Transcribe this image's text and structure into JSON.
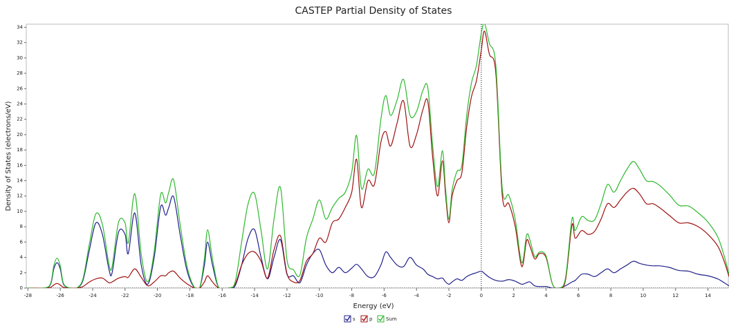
{
  "chart_data": {
    "type": "line",
    "title": "CASTEP Partial  Density of States",
    "xlabel": "Energy (eV)",
    "ylabel": "Density of States (electrons/eV)",
    "x": [
      -28,
      -27,
      -26.6,
      -26.4,
      -26.2,
      -26.0,
      -25.8,
      -25.4,
      -25,
      -24.6,
      -24.2,
      -23.8,
      -23.4,
      -23.0,
      -22.8,
      -22.4,
      -22.0,
      -21.8,
      -21.4,
      -21.0,
      -20.6,
      -20.2,
      -19.8,
      -19.5,
      -19.3,
      -19.0,
      -18.6,
      -18.2,
      -17.8,
      -17.4,
      -17.1,
      -16.9,
      -16.6,
      -16.2,
      -15.6,
      -15.2,
      -14.8,
      -14.4,
      -14.0,
      -13.6,
      -13.2,
      -12.8,
      -12.4,
      -12.0,
      -11.6,
      -11.2,
      -10.8,
      -10.4,
      -10.0,
      -9.6,
      -9.2,
      -8.8,
      -8.4,
      -8.0,
      -7.7,
      -7.4,
      -7.0,
      -6.6,
      -6.2,
      -5.9,
      -5.6,
      -5.2,
      -4.8,
      -4.4,
      -4.0,
      -3.6,
      -3.3,
      -3.0,
      -2.7,
      -2.4,
      -2.2,
      -2.0,
      -1.8,
      -1.5,
      -1.2,
      -0.9,
      -0.6,
      -0.3,
      0,
      0.2,
      0.5,
      0.9,
      1.3,
      1.7,
      2.1,
      2.5,
      2.8,
      3.0,
      3.3,
      3.6,
      4.0,
      4.4,
      4.8,
      5.2,
      5.6,
      5.8,
      6.2,
      6.6,
      7.0,
      7.4,
      7.8,
      8.2,
      8.6,
      9.0,
      9.4,
      9.8,
      10.2,
      10.6,
      11.0,
      11.6,
      12.2,
      12.8,
      13.4,
      14.0,
      14.6,
      15.0,
      15.3
    ],
    "series": [
      {
        "name": "s",
        "color": "#1f1f8a",
        "values": [
          0,
          0,
          0.5,
          2.5,
          3.3,
          2.5,
          0.5,
          0,
          0,
          1,
          5,
          8.5,
          7,
          2.5,
          2,
          7.3,
          7,
          4.5,
          9.8,
          3,
          0.5,
          4,
          10.6,
          9.5,
          10.5,
          11.9,
          7,
          2.5,
          0.3,
          0,
          3,
          6,
          3,
          0,
          0,
          0.3,
          3,
          6.5,
          7.6,
          4,
          1.2,
          4,
          6.3,
          1.8,
          1.6,
          0.7,
          3,
          4.5,
          5,
          3,
          2,
          2.7,
          2,
          2.6,
          3.1,
          2.5,
          1.5,
          1.5,
          3,
          4.7,
          4,
          3,
          2.8,
          4,
          3,
          2.5,
          1.8,
          1.5,
          1.2,
          1.3,
          0.8,
          0.5,
          0.8,
          1.2,
          1,
          1.5,
          1.8,
          2,
          2.2,
          1.9,
          1.4,
          1.0,
          0.9,
          1.1,
          0.9,
          0.5,
          0.7,
          0.8,
          0.3,
          0.2,
          0.2,
          0,
          0,
          0.3,
          0.8,
          1,
          1.8,
          1.8,
          1.5,
          2,
          2.5,
          2,
          2.5,
          3,
          3.5,
          3.2,
          3,
          2.9,
          2.9,
          2.7,
          2.3,
          2.2,
          1.8,
          1.6,
          1.2,
          0.7,
          0.3
        ]
      },
      {
        "name": "p",
        "color": "#a01010",
        "values": [
          0,
          0,
          0.1,
          0.4,
          0.6,
          0.4,
          0.1,
          0,
          0,
          0.2,
          0.8,
          1.2,
          1.3,
          0.7,
          0.8,
          1.3,
          1.5,
          1.4,
          2.5,
          1.4,
          0.3,
          0.8,
          1.6,
          1.6,
          2,
          2.2,
          1.3,
          0.6,
          0.1,
          0,
          0.8,
          1.6,
          0.8,
          0,
          0,
          0.5,
          3,
          4.5,
          4.7,
          3.5,
          1.3,
          5,
          6.8,
          1.9,
          0.8,
          1,
          3.5,
          4.5,
          6.5,
          6,
          8.5,
          9,
          10.5,
          12.5,
          16.8,
          10.5,
          14,
          13.5,
          19,
          20.4,
          18.5,
          21.5,
          24.4,
          18.5,
          20,
          23.3,
          24.3,
          17,
          12,
          16.6,
          12,
          8.5,
          12,
          14,
          15,
          21,
          25,
          27,
          31,
          33.5,
          30.5,
          28,
          12,
          11,
          8,
          2.8,
          6.2,
          5.5,
          3.8,
          4.5,
          4,
          0.5,
          0,
          1,
          8.2,
          6.5,
          7.5,
          7,
          7.4,
          9,
          11,
          10.5,
          11.5,
          12.5,
          13,
          12.2,
          11,
          11,
          10.5,
          9.5,
          8.5,
          8.5,
          8,
          7,
          5.5,
          3.5,
          1.5
        ]
      },
      {
        "name": "Sum",
        "color": "#2db82d",
        "values": [
          0,
          0,
          0.6,
          2.9,
          3.9,
          2.9,
          0.6,
          0,
          0,
          1.2,
          5.8,
          9.7,
          8.3,
          3.2,
          2.8,
          8.6,
          8.5,
          5.9,
          12.3,
          4.4,
          0.8,
          4.8,
          12.2,
          11.1,
          12.5,
          14.1,
          8.3,
          3.1,
          0.4,
          0,
          3.8,
          7.6,
          3.8,
          0,
          0,
          0.8,
          6,
          11,
          12.3,
          7.5,
          2.5,
          9,
          13.1,
          3.7,
          2.4,
          1.7,
          6.5,
          9,
          11.5,
          9,
          10.5,
          11.7,
          12.5,
          15.1,
          19.9,
          13,
          15.5,
          15,
          22,
          25.1,
          22.5,
          24.5,
          27.2,
          22.5,
          23,
          25.8,
          26.1,
          18.5,
          13.2,
          17.9,
          12.8,
          9,
          12.8,
          15.2,
          16,
          22.5,
          26.8,
          29,
          33.2,
          34.5,
          31.9,
          29,
          12.9,
          12.1,
          8.9,
          3.3,
          6.9,
          6.3,
          4.1,
          4.7,
          4.2,
          0.5,
          0,
          1.3,
          9,
          7.5,
          9.3,
          8.8,
          8.9,
          11,
          13.5,
          12.5,
          14,
          15.5,
          16.5,
          15.4,
          14,
          13.9,
          13.4,
          12.2,
          10.8,
          10.7,
          9.8,
          8.6,
          6.7,
          4.2,
          1.8
        ]
      }
    ],
    "xlim": [
      -28.1,
      15.3
    ],
    "ylim": [
      0,
      34.4
    ],
    "xticks": [
      -28,
      -26,
      -24,
      -22,
      -20,
      -18,
      -16,
      -14,
      -12,
      -10,
      -8,
      -6,
      -4,
      -2,
      0,
      2,
      4,
      6,
      8,
      10,
      12,
      14
    ],
    "yticks": [
      0,
      2,
      4,
      6,
      8,
      10,
      12,
      14,
      16,
      18,
      20,
      22,
      24,
      26,
      28,
      30,
      32,
      34
    ]
  }
}
